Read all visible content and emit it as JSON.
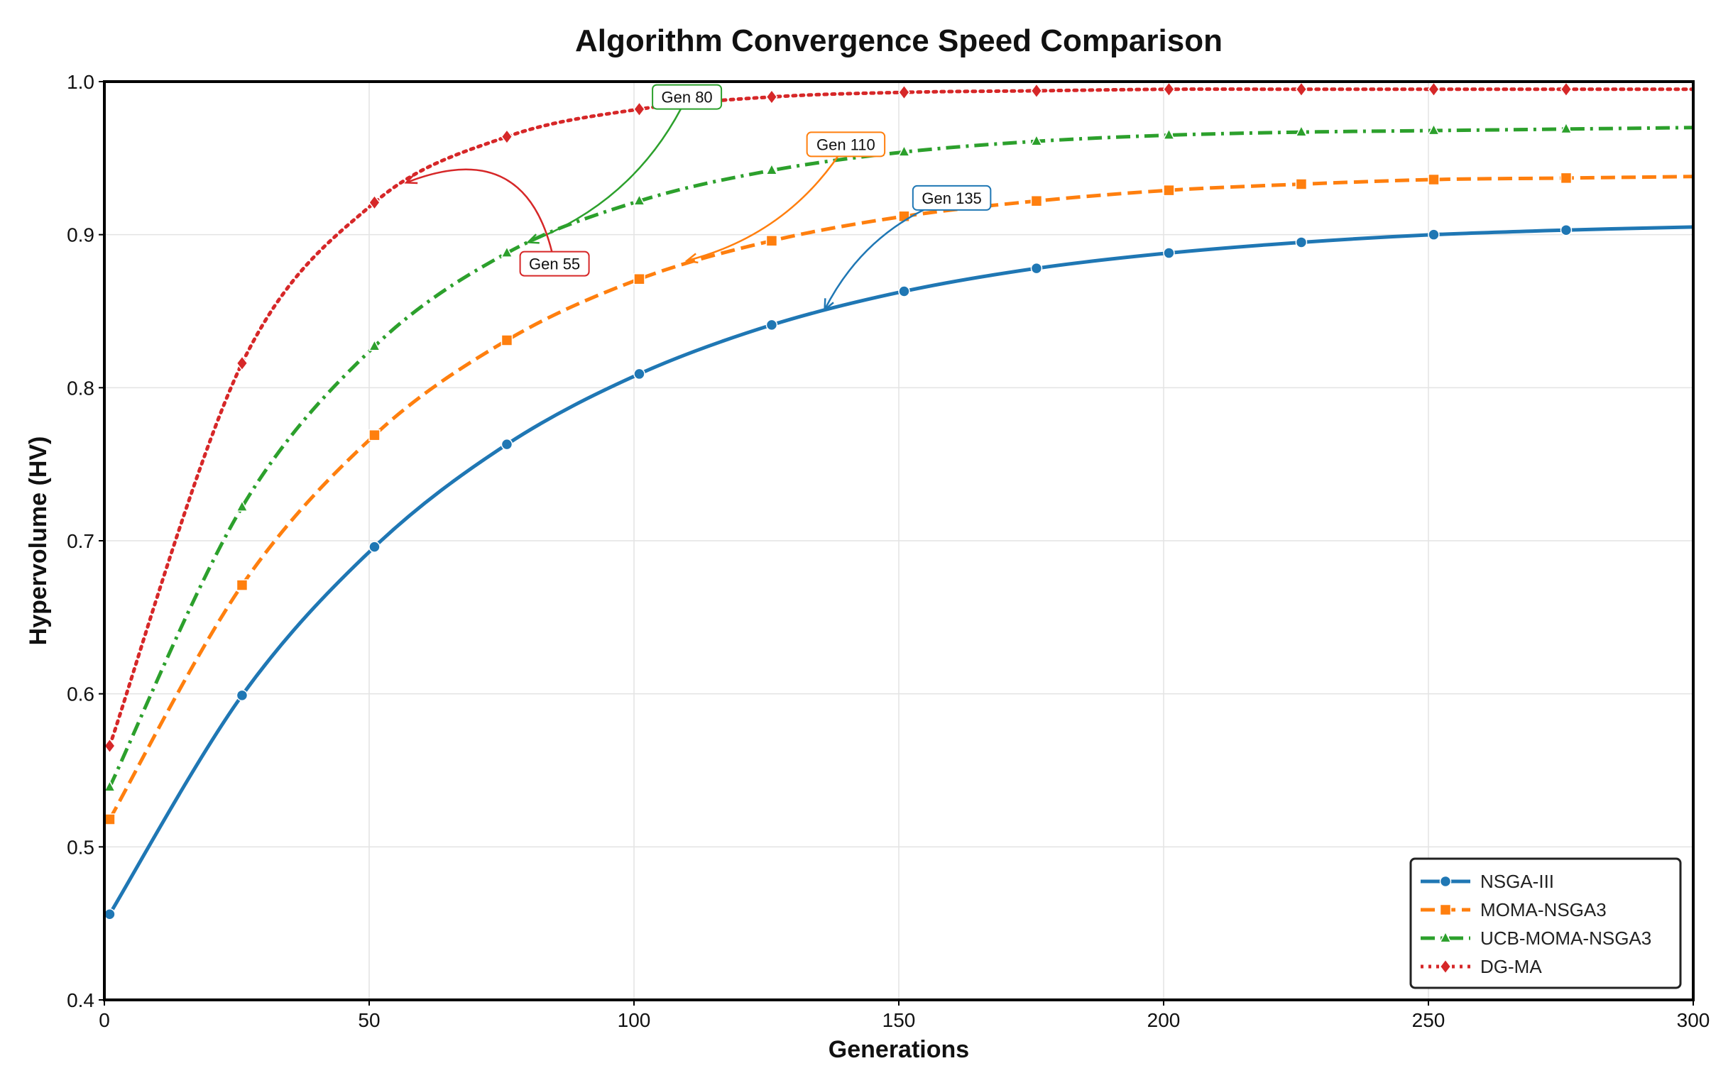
{
  "chart_data": {
    "type": "line",
    "title": "Algorithm Convergence Speed Comparison",
    "xlabel": "Generations",
    "ylabel": "Hypervolume (HV)",
    "xlim": [
      0,
      300
    ],
    "ylim": [
      0.4,
      1.0
    ],
    "xticks": [
      0,
      50,
      100,
      150,
      200,
      250,
      300
    ],
    "yticks": [
      0.4,
      0.5,
      0.6,
      0.7,
      0.8,
      0.9,
      1.0
    ],
    "ytick_labels": [
      "0.4",
      "0.5",
      "0.6",
      "0.7",
      "0.8",
      "0.9",
      "1.0"
    ],
    "grid": true,
    "legend_position": "bottom-right",
    "series": [
      {
        "name": "NSGA-III",
        "color": "#1f77b4",
        "dash": "solid",
        "marker": "circle",
        "x": [
          1,
          26,
          51,
          76,
          101,
          126,
          151,
          176,
          201,
          226,
          251,
          276,
          300
        ],
        "y": [
          0.456,
          0.599,
          0.696,
          0.763,
          0.809,
          0.841,
          0.863,
          0.878,
          0.888,
          0.895,
          0.9,
          0.903,
          0.905
        ]
      },
      {
        "name": "MOMA-NSGA3",
        "color": "#ff7f0e",
        "dash": "dashed",
        "marker": "square",
        "x": [
          1,
          26,
          51,
          76,
          101,
          126,
          151,
          176,
          201,
          226,
          251,
          276,
          300
        ],
        "y": [
          0.518,
          0.671,
          0.769,
          0.831,
          0.871,
          0.896,
          0.912,
          0.922,
          0.929,
          0.933,
          0.936,
          0.937,
          0.938
        ]
      },
      {
        "name": "UCB-MOMA-NSGA3",
        "color": "#2ca02c",
        "dash": "dashdot",
        "marker": "triangle",
        "x": [
          1,
          26,
          51,
          76,
          101,
          126,
          151,
          176,
          201,
          226,
          251,
          276,
          300
        ],
        "y": [
          0.539,
          0.722,
          0.827,
          0.888,
          0.922,
          0.942,
          0.954,
          0.961,
          0.965,
          0.967,
          0.968,
          0.969,
          0.97
        ]
      },
      {
        "name": "DG-MA",
        "color": "#d62728",
        "dash": "dotted",
        "marker": "diamond",
        "x": [
          1,
          26,
          51,
          76,
          101,
          126,
          151,
          176,
          201,
          226,
          251,
          276,
          300
        ],
        "y": [
          0.566,
          0.816,
          0.921,
          0.964,
          0.982,
          0.99,
          0.993,
          0.994,
          0.995,
          0.995,
          0.995,
          0.995,
          0.995
        ]
      }
    ],
    "annotations": [
      {
        "text": "Gen 135",
        "color": "#1f77b4",
        "target": [
          136,
          0.851
        ],
        "box_at": [
          160,
          0.924
        ],
        "rad": -0.2
      },
      {
        "text": "Gen 110",
        "color": "#ff7f0e",
        "target": [
          110,
          0.883
        ],
        "box_at": [
          140,
          0.959
        ],
        "rad": 0.2
      },
      {
        "text": "Gen 80",
        "color": "#2ca02c",
        "target": [
          80,
          0.895
        ],
        "box_at": [
          110,
          0.99
        ],
        "rad": 0.2
      },
      {
        "text": "Gen 55",
        "color": "#d62728",
        "target": [
          57,
          0.934
        ],
        "box_at": [
          85,
          0.881
        ],
        "rad": -0.6
      }
    ]
  }
}
